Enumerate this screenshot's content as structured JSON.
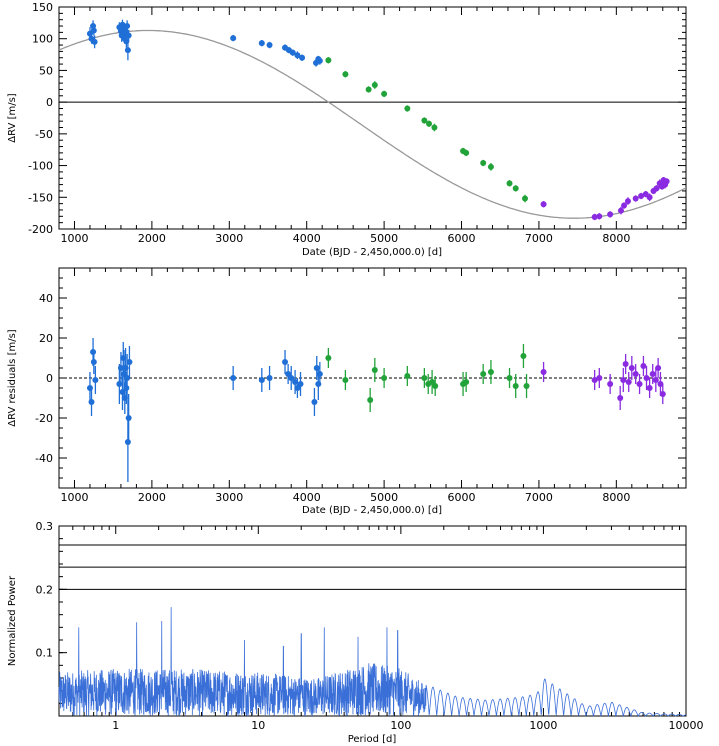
{
  "colors": {
    "harps_early": "#1f6fd6",
    "harps_mid": "#22a33a",
    "harps_late": "#8a2be2",
    "model_curve": "#999999",
    "periodogram": "#3a6fd8",
    "frame": "#000000"
  },
  "chart_data": [
    {
      "type": "scatter",
      "panel": "rv",
      "xlabel": "Date (BJD - 2,450,000.0) [d]",
      "ylabel": "ΔRV [m/s]",
      "xlim": [
        800,
        8900
      ],
      "ylim": [
        -200,
        150
      ],
      "xticks": [
        1000,
        2000,
        3000,
        4000,
        5000,
        6000,
        7000,
        8000
      ],
      "yticks": [
        150,
        100,
        50,
        0,
        -50,
        -100,
        -150,
        -200
      ],
      "reference_line": 0,
      "model": {
        "type": "sinusoid",
        "offset": -35,
        "amplitude": 148,
        "period": 11000,
        "max_at": 1950
      },
      "series": [
        {
          "color_key": "harps_early",
          "points": [
            [
              1200,
              108,
              10
            ],
            [
              1220,
              100,
              8
            ],
            [
              1240,
              120,
              9
            ],
            [
              1250,
              113,
              8
            ],
            [
              1260,
              95,
              10
            ],
            [
              1580,
              118,
              8
            ],
            [
              1600,
              112,
              9
            ],
            [
              1610,
              105,
              10
            ],
            [
              1620,
              122,
              8
            ],
            [
              1630,
              115,
              9
            ],
            [
              1640,
              108,
              10
            ],
            [
              1650,
              100,
              8
            ],
            [
              1660,
              112,
              9
            ],
            [
              1670,
              96,
              10
            ],
            [
              1680,
              120,
              9
            ],
            [
              1690,
              82,
              16
            ],
            [
              1700,
              105,
              9
            ],
            [
              3050,
              101,
              5
            ],
            [
              3420,
              93,
              5
            ],
            [
              3520,
              90,
              5
            ],
            [
              3720,
              86,
              5
            ],
            [
              3770,
              82,
              5
            ],
            [
              3820,
              78,
              5
            ],
            [
              3880,
              74,
              6
            ],
            [
              3940,
              70,
              5
            ],
            [
              4120,
              62,
              6
            ],
            [
              4150,
              68,
              5
            ],
            [
              4170,
              65,
              6
            ]
          ]
        },
        {
          "color_key": "harps_mid",
          "points": [
            [
              4280,
              66,
              5
            ],
            [
              4500,
              44,
              5
            ],
            [
              4800,
              20,
              5
            ],
            [
              4880,
              27,
              6
            ],
            [
              5000,
              13,
              5
            ],
            [
              5300,
              -10,
              5
            ],
            [
              5520,
              -29,
              5
            ],
            [
              5580,
              -34,
              5
            ],
            [
              5650,
              -40,
              6
            ],
            [
              6020,
              -77,
              5
            ],
            [
              6060,
              -80,
              5
            ],
            [
              6280,
              -96,
              5
            ],
            [
              6380,
              -102,
              6
            ],
            [
              6620,
              -128,
              5
            ],
            [
              6700,
              -136,
              5
            ],
            [
              6820,
              -152,
              6
            ]
          ]
        },
        {
          "color_key": "harps_late",
          "points": [
            [
              7060,
              -161,
              5
            ],
            [
              7720,
              -181,
              5
            ],
            [
              7780,
              -180,
              5
            ],
            [
              7920,
              -177,
              5
            ],
            [
              8060,
              -171,
              6
            ],
            [
              8100,
              -163,
              5
            ],
            [
              8150,
              -156,
              6
            ],
            [
              8250,
              -152,
              5
            ],
            [
              8320,
              -148,
              5
            ],
            [
              8380,
              -145,
              5
            ],
            [
              8430,
              -150,
              6
            ],
            [
              8480,
              -140,
              5
            ],
            [
              8520,
              -136,
              5
            ],
            [
              8560,
              -128,
              6
            ],
            [
              8590,
              -133,
              5
            ],
            [
              8610,
              -123,
              5
            ],
            [
              8630,
              -130,
              6
            ],
            [
              8650,
              -125,
              5
            ]
          ]
        }
      ]
    },
    {
      "type": "scatter",
      "panel": "residuals",
      "xlabel": "Date (BJD - 2,450,000.0) [d]",
      "ylabel": "ΔRV residuals [m/s]",
      "xlim": [
        800,
        8900
      ],
      "ylim": [
        -55,
        55
      ],
      "xticks": [
        1000,
        2000,
        3000,
        4000,
        5000,
        6000,
        7000,
        8000
      ],
      "yticks": [
        40,
        20,
        0,
        -20,
        -40
      ],
      "reference_line": 0,
      "series": [
        {
          "color_key": "harps_early",
          "points": [
            [
              1200,
              -5,
              8
            ],
            [
              1220,
              -12,
              7
            ],
            [
              1240,
              13,
              7
            ],
            [
              1250,
              8,
              6
            ],
            [
              1270,
              -1,
              7
            ],
            [
              1580,
              -3,
              10
            ],
            [
              1600,
              5,
              8
            ],
            [
              1620,
              -7,
              9
            ],
            [
              1630,
              10,
              8
            ],
            [
              1640,
              2,
              12
            ],
            [
              1650,
              -10,
              8
            ],
            [
              1660,
              5,
              10
            ],
            [
              1670,
              -5,
              8
            ],
            [
              1680,
              0,
              12
            ],
            [
              1690,
              -32,
              20
            ],
            [
              1700,
              -20,
              12
            ],
            [
              1710,
              8,
              8
            ],
            [
              3050,
              0,
              6
            ],
            [
              3420,
              -1,
              6
            ],
            [
              3520,
              0,
              6
            ],
            [
              3720,
              8,
              6
            ],
            [
              3760,
              2,
              5
            ],
            [
              3800,
              0,
              6
            ],
            [
              3850,
              -2,
              6
            ],
            [
              3880,
              -5,
              5
            ],
            [
              3920,
              -3,
              6
            ],
            [
              4100,
              -12,
              7
            ],
            [
              4130,
              5,
              6
            ],
            [
              4150,
              -3,
              8
            ],
            [
              4170,
              2,
              6
            ]
          ]
        },
        {
          "color_key": "harps_mid",
          "points": [
            [
              4280,
              10,
              5
            ],
            [
              4500,
              -1,
              5
            ],
            [
              4820,
              -11,
              6
            ],
            [
              4880,
              4,
              6
            ],
            [
              5000,
              0,
              5
            ],
            [
              5300,
              1,
              5
            ],
            [
              5520,
              0,
              5
            ],
            [
              5570,
              -3,
              5
            ],
            [
              5620,
              -2,
              6
            ],
            [
              5660,
              -4,
              5
            ],
            [
              6020,
              -3,
              6
            ],
            [
              6060,
              -2,
              5
            ],
            [
              6280,
              2,
              5
            ],
            [
              6380,
              3,
              6
            ],
            [
              6620,
              0,
              5
            ],
            [
              6700,
              -4,
              6
            ],
            [
              6800,
              11,
              6
            ],
            [
              6840,
              -4,
              6
            ]
          ]
        },
        {
          "color_key": "harps_late",
          "points": [
            [
              7060,
              3,
              5
            ],
            [
              7720,
              -1,
              5
            ],
            [
              7780,
              0,
              5
            ],
            [
              7920,
              -3,
              5
            ],
            [
              8050,
              -10,
              6
            ],
            [
              8090,
              -1,
              6
            ],
            [
              8120,
              7,
              5
            ],
            [
              8160,
              -2,
              5
            ],
            [
              8200,
              5,
              6
            ],
            [
              8250,
              2,
              5
            ],
            [
              8300,
              -3,
              5
            ],
            [
              8350,
              6,
              5
            ],
            [
              8390,
              0,
              6
            ],
            [
              8430,
              -5,
              5
            ],
            [
              8470,
              2,
              5
            ],
            [
              8510,
              -1,
              6
            ],
            [
              8540,
              5,
              5
            ],
            [
              8570,
              -3,
              6
            ],
            [
              8600,
              -8,
              5
            ]
          ]
        }
      ]
    },
    {
      "type": "line",
      "panel": "periodogram",
      "xlabel": "Period [d]",
      "ylabel": "Normalized Power",
      "xscale": "log",
      "xlim": [
        0.4,
        10000
      ],
      "ylim": [
        0,
        0.3
      ],
      "xticks": [
        1,
        10,
        100,
        1000,
        10000
      ],
      "xtick_labels": [
        "1",
        "10",
        "100",
        "1000",
        "10000"
      ],
      "yticks": [
        0.3,
        0.2,
        0.1
      ],
      "ytick_labels": [
        "0.3",
        "0.2",
        "0.1"
      ],
      "fap_levels": [
        0.27,
        0.235,
        0.2
      ],
      "peaks": [
        [
          2.45,
          0.172
        ],
        [
          2.1,
          0.15
        ],
        [
          1.4,
          0.148
        ],
        [
          0.55,
          0.14
        ],
        [
          29,
          0.14
        ],
        [
          50,
          0.125
        ],
        [
          80,
          0.14
        ],
        [
          95,
          0.135
        ],
        [
          8,
          0.12
        ],
        [
          15,
          0.11
        ],
        [
          20,
          0.13
        ]
      ],
      "envelope": [
        [
          0.4,
          0.07
        ],
        [
          1,
          0.075
        ],
        [
          3,
          0.075
        ],
        [
          10,
          0.07
        ],
        [
          25,
          0.06
        ],
        [
          60,
          0.085
        ],
        [
          100,
          0.075
        ],
        [
          150,
          0.05
        ],
        [
          250,
          0.03
        ],
        [
          400,
          0.025
        ],
        [
          700,
          0.03
        ],
        [
          900,
          0.035
        ],
        [
          1000,
          0.06
        ],
        [
          2000,
          0.015
        ],
        [
          3000,
          0.022
        ],
        [
          5000,
          0.005
        ],
        [
          10000,
          0.002
        ]
      ]
    }
  ]
}
